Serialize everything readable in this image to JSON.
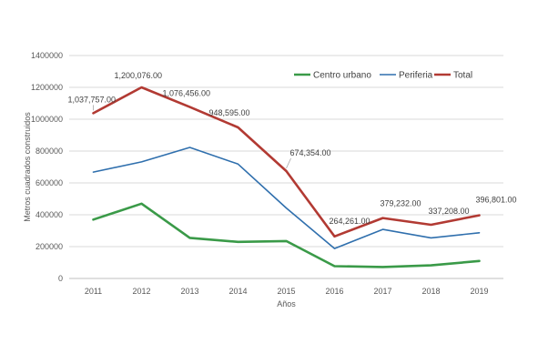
{
  "chart_data": {
    "type": "line",
    "xlabel": "Años",
    "ylabel": "Metros cuadrados construidos",
    "ylim": [
      0,
      1400000
    ],
    "yticks": [
      0,
      200000,
      400000,
      600000,
      800000,
      1000000,
      1200000,
      1400000
    ],
    "ytick_labels": [
      "0",
      "200000",
      "400000",
      "600000",
      "800000",
      "1000000",
      "1200000",
      "1400000"
    ],
    "categories": [
      "2011",
      "2012",
      "2013",
      "2014",
      "2015",
      "2016",
      "2017",
      "2018",
      "2019"
    ],
    "grid": true,
    "legend_position": "top-right",
    "series": [
      {
        "name": "Centro urbano",
        "color": "#3a9a48",
        "values": [
          370000,
          470000,
          255000,
          230000,
          235000,
          77000,
          72000,
          82000,
          110000
        ]
      },
      {
        "name": "Periferia",
        "color": "#2f6fad",
        "values": [
          668000,
          732000,
          823000,
          718000,
          442000,
          188000,
          308000,
          255000,
          287000
        ]
      },
      {
        "name": "Total",
        "color": "#b23a33",
        "values": [
          1037757,
          1200076,
          1076456,
          948595,
          674354,
          264261,
          379232,
          337208,
          396801
        ],
        "data_labels": [
          "1,037,757.00",
          "1,200,076.00",
          "1,076,456.00",
          "948,595.00",
          "674,354.00",
          "264,261.00",
          "379,232.00",
          "337,208.00",
          "396,801.00"
        ]
      }
    ]
  }
}
